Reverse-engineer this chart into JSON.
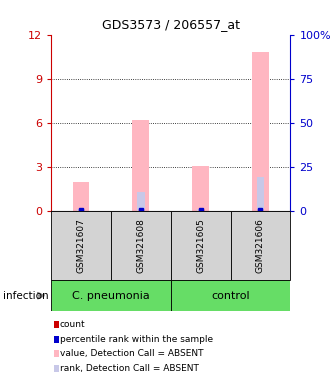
{
  "title": "GDS3573 / 206557_at",
  "samples": [
    "GSM321607",
    "GSM321608",
    "GSM321605",
    "GSM321606"
  ],
  "group_labels": [
    "C. pneumonia",
    "control"
  ],
  "bar_color_absent": "#ffb6c1",
  "bar_color_rank_absent": "#c8c8e8",
  "dot_color_count": "#cc0000",
  "dot_color_rank": "#0000cc",
  "ylim_left": [
    0,
    12
  ],
  "ylim_right": [
    0,
    100
  ],
  "yticks_left": [
    0,
    3,
    6,
    9,
    12
  ],
  "yticks_right": [
    0,
    25,
    50,
    75,
    100
  ],
  "ytick_labels_right": [
    "0",
    "25",
    "50",
    "75",
    "100%"
  ],
  "left_tick_color": "#cc0000",
  "right_tick_color": "#0000cc",
  "value_absent": [
    2.0,
    6.2,
    3.1,
    10.8
  ],
  "rank_absent": [
    0.15,
    1.3,
    0.15,
    2.3
  ],
  "infection_label": "infection",
  "legend_items": [
    {
      "color": "#cc0000",
      "label": "count"
    },
    {
      "color": "#0000cc",
      "label": "percentile rank within the sample"
    },
    {
      "color": "#ffb6c1",
      "label": "value, Detection Call = ABSENT"
    },
    {
      "color": "#c8c8e8",
      "label": "rank, Detection Call = ABSENT"
    }
  ],
  "sample_box_color": "#d3d3d3",
  "group_box_green": "#66dd66",
  "fig_bg": "#ffffff"
}
